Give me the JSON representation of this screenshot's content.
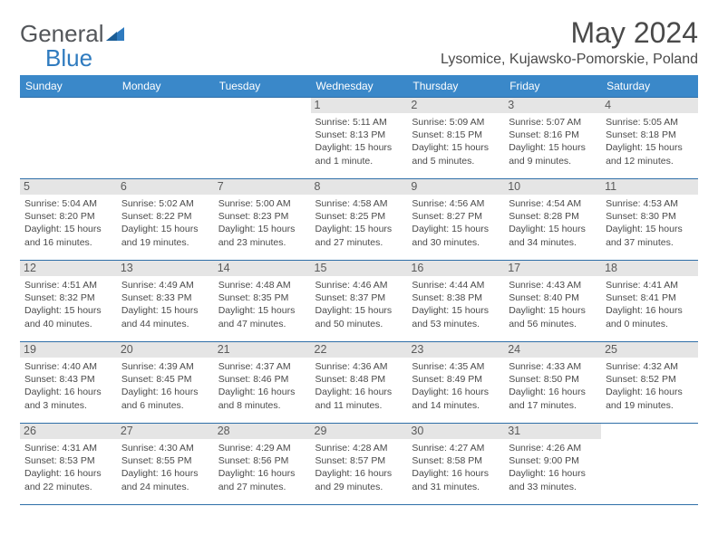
{
  "brand": {
    "part1": "General",
    "part2": "Blue"
  },
  "title": "May 2024",
  "location": "Lysomice, Kujawsko-Pomorskie, Poland",
  "colors": {
    "header_bg": "#3a88c9",
    "header_text": "#ffffff",
    "border": "#2f6fa8",
    "daynum_bg": "#e5e5e5",
    "text": "#4a4a4a",
    "brand_gray": "#53565a",
    "brand_blue": "#2f7bbf",
    "background": "#ffffff"
  },
  "typography": {
    "title_fontsize": 32,
    "location_fontsize": 16,
    "header_fontsize": 12,
    "daynum_fontsize": 12.5,
    "info_fontsize": 10.5
  },
  "weekdays": [
    "Sunday",
    "Monday",
    "Tuesday",
    "Wednesday",
    "Thursday",
    "Friday",
    "Saturday"
  ],
  "weeks": [
    [
      null,
      null,
      null,
      {
        "n": "1",
        "sr": "5:11 AM",
        "ss": "8:13 PM",
        "dl": "15 hours and 1 minute."
      },
      {
        "n": "2",
        "sr": "5:09 AM",
        "ss": "8:15 PM",
        "dl": "15 hours and 5 minutes."
      },
      {
        "n": "3",
        "sr": "5:07 AM",
        "ss": "8:16 PM",
        "dl": "15 hours and 9 minutes."
      },
      {
        "n": "4",
        "sr": "5:05 AM",
        "ss": "8:18 PM",
        "dl": "15 hours and 12 minutes."
      }
    ],
    [
      {
        "n": "5",
        "sr": "5:04 AM",
        "ss": "8:20 PM",
        "dl": "15 hours and 16 minutes."
      },
      {
        "n": "6",
        "sr": "5:02 AM",
        "ss": "8:22 PM",
        "dl": "15 hours and 19 minutes."
      },
      {
        "n": "7",
        "sr": "5:00 AM",
        "ss": "8:23 PM",
        "dl": "15 hours and 23 minutes."
      },
      {
        "n": "8",
        "sr": "4:58 AM",
        "ss": "8:25 PM",
        "dl": "15 hours and 27 minutes."
      },
      {
        "n": "9",
        "sr": "4:56 AM",
        "ss": "8:27 PM",
        "dl": "15 hours and 30 minutes."
      },
      {
        "n": "10",
        "sr": "4:54 AM",
        "ss": "8:28 PM",
        "dl": "15 hours and 34 minutes."
      },
      {
        "n": "11",
        "sr": "4:53 AM",
        "ss": "8:30 PM",
        "dl": "15 hours and 37 minutes."
      }
    ],
    [
      {
        "n": "12",
        "sr": "4:51 AM",
        "ss": "8:32 PM",
        "dl": "15 hours and 40 minutes."
      },
      {
        "n": "13",
        "sr": "4:49 AM",
        "ss": "8:33 PM",
        "dl": "15 hours and 44 minutes."
      },
      {
        "n": "14",
        "sr": "4:48 AM",
        "ss": "8:35 PM",
        "dl": "15 hours and 47 minutes."
      },
      {
        "n": "15",
        "sr": "4:46 AM",
        "ss": "8:37 PM",
        "dl": "15 hours and 50 minutes."
      },
      {
        "n": "16",
        "sr": "4:44 AM",
        "ss": "8:38 PM",
        "dl": "15 hours and 53 minutes."
      },
      {
        "n": "17",
        "sr": "4:43 AM",
        "ss": "8:40 PM",
        "dl": "15 hours and 56 minutes."
      },
      {
        "n": "18",
        "sr": "4:41 AM",
        "ss": "8:41 PM",
        "dl": "16 hours and 0 minutes."
      }
    ],
    [
      {
        "n": "19",
        "sr": "4:40 AM",
        "ss": "8:43 PM",
        "dl": "16 hours and 3 minutes."
      },
      {
        "n": "20",
        "sr": "4:39 AM",
        "ss": "8:45 PM",
        "dl": "16 hours and 6 minutes."
      },
      {
        "n": "21",
        "sr": "4:37 AM",
        "ss": "8:46 PM",
        "dl": "16 hours and 8 minutes."
      },
      {
        "n": "22",
        "sr": "4:36 AM",
        "ss": "8:48 PM",
        "dl": "16 hours and 11 minutes."
      },
      {
        "n": "23",
        "sr": "4:35 AM",
        "ss": "8:49 PM",
        "dl": "16 hours and 14 minutes."
      },
      {
        "n": "24",
        "sr": "4:33 AM",
        "ss": "8:50 PM",
        "dl": "16 hours and 17 minutes."
      },
      {
        "n": "25",
        "sr": "4:32 AM",
        "ss": "8:52 PM",
        "dl": "16 hours and 19 minutes."
      }
    ],
    [
      {
        "n": "26",
        "sr": "4:31 AM",
        "ss": "8:53 PM",
        "dl": "16 hours and 22 minutes."
      },
      {
        "n": "27",
        "sr": "4:30 AM",
        "ss": "8:55 PM",
        "dl": "16 hours and 24 minutes."
      },
      {
        "n": "28",
        "sr": "4:29 AM",
        "ss": "8:56 PM",
        "dl": "16 hours and 27 minutes."
      },
      {
        "n": "29",
        "sr": "4:28 AM",
        "ss": "8:57 PM",
        "dl": "16 hours and 29 minutes."
      },
      {
        "n": "30",
        "sr": "4:27 AM",
        "ss": "8:58 PM",
        "dl": "16 hours and 31 minutes."
      },
      {
        "n": "31",
        "sr": "4:26 AM",
        "ss": "9:00 PM",
        "dl": "16 hours and 33 minutes."
      },
      null
    ]
  ],
  "labels": {
    "sunrise": "Sunrise:",
    "sunset": "Sunset:",
    "daylight": "Daylight:"
  }
}
